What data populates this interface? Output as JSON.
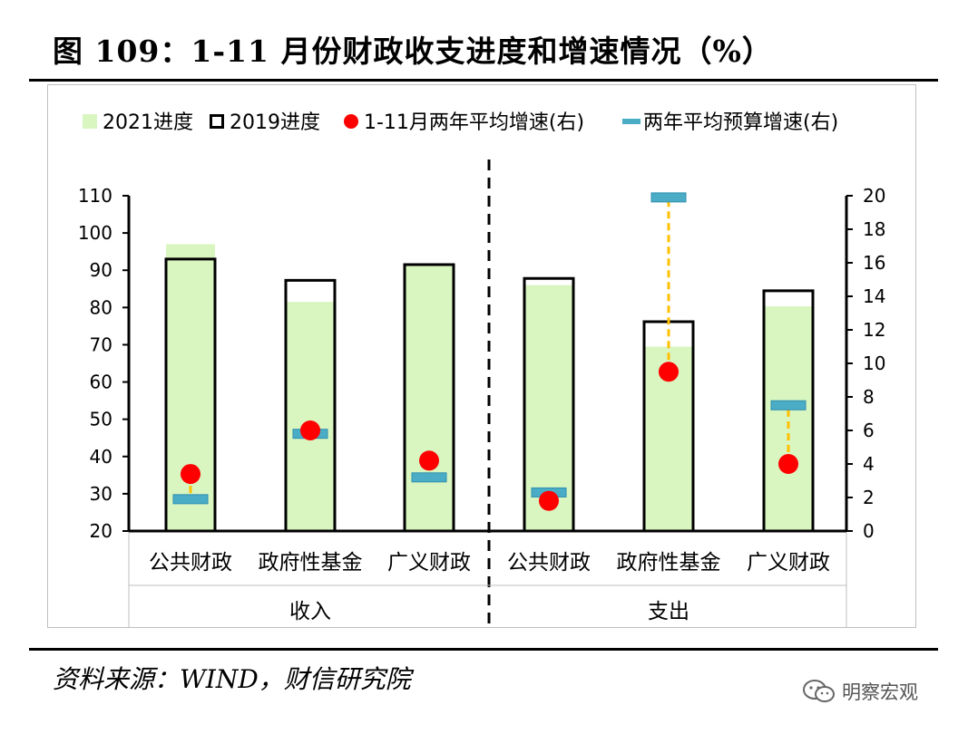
{
  "title": "图 109：1-11 月份财政收支进度和增速情况（%）",
  "source": "资料来源：WIND，财信研究院",
  "watermark": "明察宏观",
  "colors": {
    "progress_2021": "#d9f5c0",
    "progress_2019": "#000000",
    "growth": "#ff0000",
    "budget": "#4bacc6",
    "connector": "#ffc000"
  },
  "chart_data": {
    "type": "bar",
    "legend": [
      "2021进度",
      "2019进度",
      "1-11月两年平均增速(右)",
      "两年平均预算增速(右)"
    ],
    "legend_position": "top",
    "groups": [
      {
        "label": "收入",
        "categories": [
          "公共财政",
          "政府性基金",
          "广义财政"
        ]
      },
      {
        "label": "支出",
        "categories": [
          "公共财政",
          "政府性基金",
          "广义财政"
        ]
      }
    ],
    "categories": [
      "公共财政",
      "政府性基金",
      "广义财政",
      "公共财政",
      "政府性基金",
      "广义财政"
    ],
    "y_left": {
      "min": 20,
      "max": 110,
      "step": 10,
      "ticks": [
        "20",
        "30",
        "40",
        "50",
        "60",
        "70",
        "80",
        "90",
        "100",
        "110"
      ]
    },
    "y_right": {
      "min": 0,
      "max": 20,
      "step": 2,
      "ticks": [
        "0",
        "2",
        "4",
        "6",
        "8",
        "10",
        "12",
        "14",
        "16",
        "18",
        "20"
      ]
    },
    "series": [
      {
        "name": "2021进度",
        "axis": "left",
        "values": [
          97,
          81.5,
          91.2,
          86,
          69.5,
          80.3
        ]
      },
      {
        "name": "2019进度",
        "axis": "left",
        "values": [
          93,
          87.3,
          91.5,
          87.8,
          76.2,
          84.5
        ]
      },
      {
        "name": "1-11月两年平均增速(右)",
        "axis": "right",
        "values": [
          3.4,
          6,
          4.2,
          1.8,
          9.5,
          4
        ]
      },
      {
        "name": "两年平均预算增速(右)",
        "axis": "right",
        "values": [
          1.9,
          5.8,
          3.2,
          2.3,
          19.9,
          7.5
        ]
      }
    ]
  }
}
